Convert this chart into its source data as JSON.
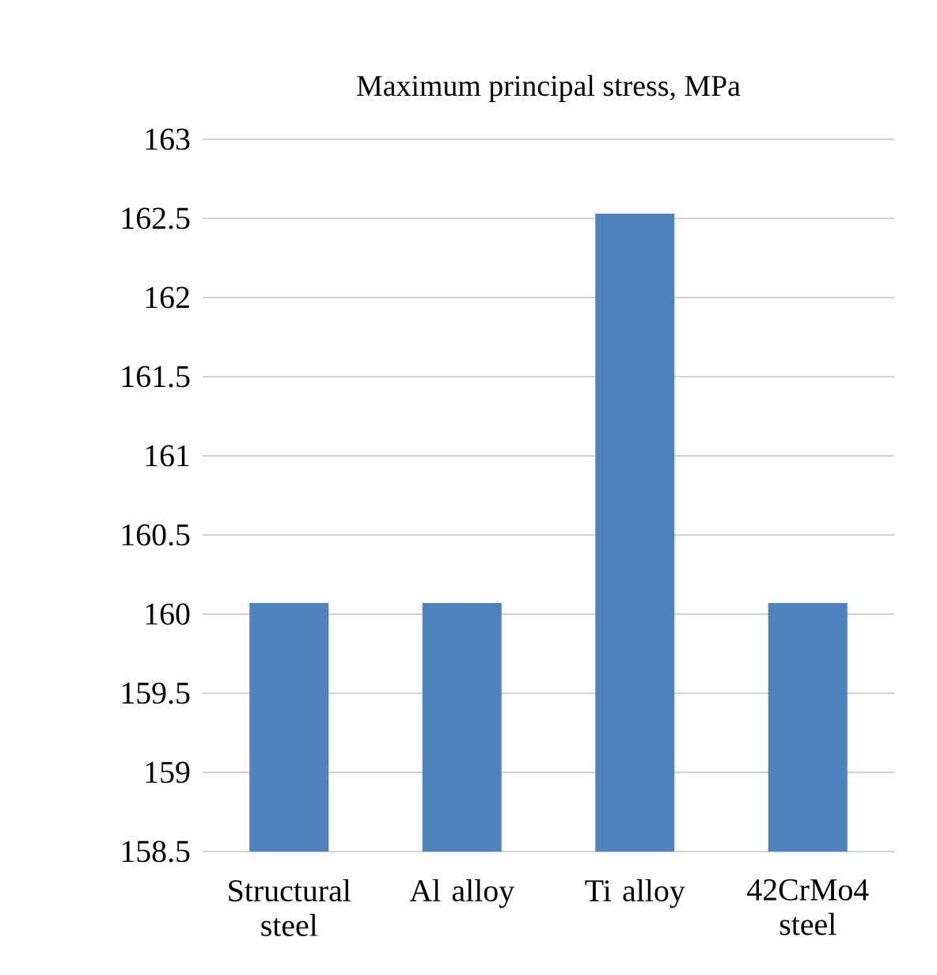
{
  "chart_data": {
    "type": "bar",
    "title": "Maximum principal stress, MPa",
    "categories": [
      "Structural steel",
      "Al alloy",
      "Ti alloy",
      "42CrMo4 steel"
    ],
    "values": [
      160.07,
      160.07,
      162.53,
      160.07
    ],
    "color": "#4f81bd",
    "ylim": [
      158.5,
      163
    ],
    "yticks": [
      158.5,
      159,
      159.5,
      160,
      160.5,
      161,
      161.5,
      162,
      162.5,
      163
    ],
    "grid": "y"
  }
}
